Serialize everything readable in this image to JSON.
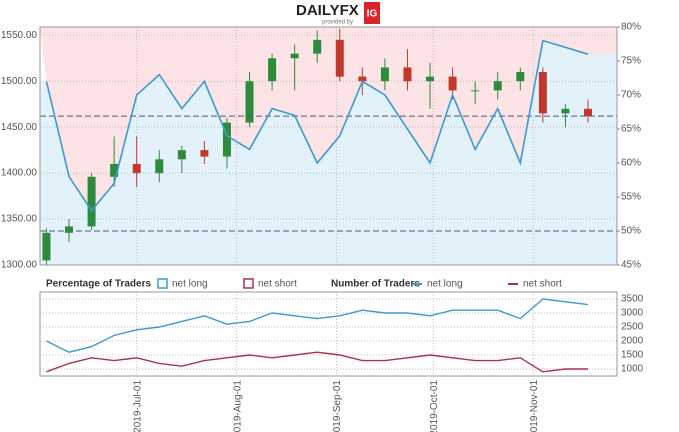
{
  "header": {
    "brand": "DAILYFX",
    "provided": "provided by",
    "partner": "IG"
  },
  "chart_data": [
    {
      "type": "candlestick",
      "x": [
        "2019-Jun-03",
        "2019-Jun-10",
        "2019-Jun-17",
        "2019-Jun-24",
        "2019-Jul-01",
        "2019-Jul-08",
        "2019-Jul-15",
        "2019-Jul-22",
        "2019-Jul-29",
        "2019-Aug-05",
        "2019-Aug-12",
        "2019-Aug-19",
        "2019-Aug-26",
        "2019-Sep-02",
        "2019-Sep-09",
        "2019-Sep-16",
        "2019-Sep-23",
        "2019-Sep-30",
        "2019-Oct-07",
        "2019-Oct-14",
        "2019-Oct-21",
        "2019-Oct-28",
        "2019-Nov-04",
        "2019-Nov-11",
        "2019-Nov-18"
      ],
      "open": [
        1305,
        1335,
        1342,
        1396,
        1410,
        1400,
        1415,
        1425,
        1418,
        1455,
        1500,
        1525,
        1530,
        1545,
        1505,
        1500,
        1515,
        1500,
        1505,
        1490,
        1490,
        1500,
        1510,
        1465,
        1470
      ],
      "high": [
        1340,
        1350,
        1400,
        1440,
        1440,
        1425,
        1430,
        1435,
        1460,
        1510,
        1530,
        1540,
        1555,
        1557,
        1515,
        1525,
        1535,
        1520,
        1515,
        1500,
        1510,
        1515,
        1515,
        1475,
        1480
      ],
      "low": [
        1300,
        1325,
        1338,
        1385,
        1385,
        1390,
        1400,
        1410,
        1405,
        1450,
        1490,
        1490,
        1520,
        1500,
        1485,
        1490,
        1490,
        1470,
        1480,
        1475,
        1480,
        1490,
        1455,
        1450,
        1455
      ],
      "close": [
        1335,
        1342,
        1396,
        1410,
        1400,
        1415,
        1425,
        1418,
        1455,
        1500,
        1525,
        1530,
        1545,
        1505,
        1500,
        1515,
        1500,
        1505,
        1490,
        1490,
        1500,
        1510,
        1465,
        1470,
        1462
      ],
      "up_color": "#2e8b3e",
      "down_color": "#c0392b",
      "legend_title": "Percentage of Traders",
      "series": [
        {
          "name": "net long",
          "color": "#3a9bd0",
          "fill": "#e3f1fb",
          "axis": "y2",
          "values": [
            72,
            58,
            53,
            57,
            70,
            73,
            68,
            72,
            64,
            62,
            68,
            67,
            60,
            64,
            72,
            70,
            65,
            60,
            70,
            62,
            68,
            60,
            78,
            77,
            76
          ]
        },
        {
          "name": "net short",
          "color": "#b03048",
          "fill": "#fbe3e6",
          "axis": "y2",
          "values": [
            28,
            42,
            47,
            43,
            30,
            27,
            32,
            28,
            36,
            38,
            32,
            33,
            40,
            36,
            28,
            30,
            35,
            40,
            30,
            38,
            32,
            40,
            22,
            23,
            24
          ]
        }
      ],
      "threshold": 50,
      "xlim": [
        "2019-Jun-01",
        "2019-Nov-27"
      ],
      "xticks": [
        "2019-Jul-01",
        "2019-Aug-01",
        "2019-Sep-01",
        "2019-Oct-01",
        "2019-Nov-01"
      ],
      "ylim": [
        1300,
        1559
      ],
      "yticks": [
        {
          "value": 1300,
          "label": "1300.00"
        },
        {
          "value": 1350,
          "label": "1350.00"
        },
        {
          "value": 1400,
          "label": "1400.00"
        },
        {
          "value": 1450,
          "label": "1450.00"
        },
        {
          "value": 1500,
          "label": "1500.00"
        },
        {
          "value": 1550,
          "label": "1550.00"
        }
      ],
      "y2lim": [
        45,
        80
      ],
      "y2ticks": [
        {
          "value": 45,
          "label": "45%"
        },
        {
          "value": 50,
          "label": "50%"
        },
        {
          "value": 55,
          "label": "55%"
        },
        {
          "value": 60,
          "label": "60%"
        },
        {
          "value": 65,
          "label": "65%"
        },
        {
          "value": 70,
          "label": "70%"
        },
        {
          "value": 75,
          "label": "75%"
        },
        {
          "value": 80,
          "label": "80%"
        }
      ],
      "grid": true
    },
    {
      "type": "line",
      "legend_title": "Number of Traders",
      "x": [
        "2019-Jun-03",
        "2019-Jun-10",
        "2019-Jun-17",
        "2019-Jun-24",
        "2019-Jul-01",
        "2019-Jul-08",
        "2019-Jul-15",
        "2019-Jul-22",
        "2019-Jul-29",
        "2019-Aug-05",
        "2019-Aug-12",
        "2019-Aug-19",
        "2019-Aug-26",
        "2019-Sep-02",
        "2019-Sep-09",
        "2019-Sep-16",
        "2019-Sep-23",
        "2019-Sep-30",
        "2019-Oct-07",
        "2019-Oct-14",
        "2019-Oct-21",
        "2019-Oct-28",
        "2019-Nov-04",
        "2019-Nov-11",
        "2019-Nov-18"
      ],
      "series": [
        {
          "name": "net long",
          "color": "#3a9bd0",
          "values": [
            2000,
            1600,
            1800,
            2200,
            2400,
            2500,
            2700,
            2900,
            2600,
            2700,
            3000,
            2900,
            2800,
            2900,
            3100,
            3000,
            3000,
            2900,
            3100,
            3100,
            3100,
            2800,
            3500,
            3400,
            3300
          ]
        },
        {
          "name": "net short",
          "color": "#b03048",
          "values": [
            900,
            1200,
            1400,
            1300,
            1400,
            1200,
            1100,
            1300,
            1400,
            1500,
            1400,
            1500,
            1600,
            1500,
            1300,
            1300,
            1400,
            1500,
            1400,
            1300,
            1300,
            1400,
            900,
            1000,
            1000
          ]
        }
      ],
      "ylim": [
        750,
        3750
      ],
      "yticks": [
        1000,
        1500,
        2000,
        2500,
        3000,
        3500
      ],
      "grid": true
    }
  ]
}
